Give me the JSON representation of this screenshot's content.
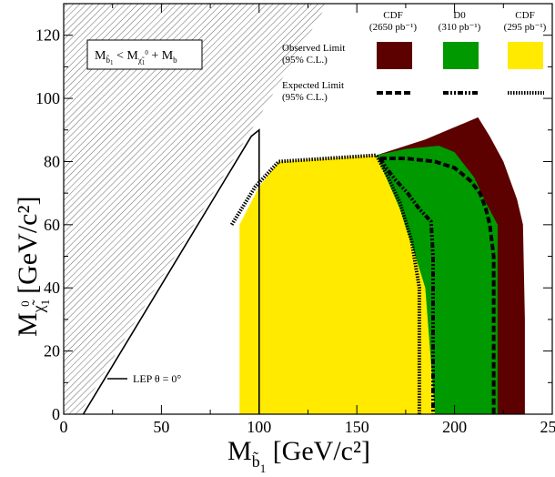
{
  "chart_data": {
    "type": "area",
    "xlim": [
      0,
      250
    ],
    "ylim": [
      0,
      130
    ],
    "x_ticks": [
      0,
      50,
      100,
      150,
      200,
      250
    ],
    "y_ticks": [
      0,
      20,
      40,
      60,
      80,
      100,
      120
    ],
    "x_tick_labels": [
      "0",
      "50",
      "100",
      "150",
      "200",
      "250"
    ],
    "y_tick_labels": [
      "0",
      "20",
      "40",
      "60",
      "80",
      "100",
      "120"
    ],
    "xlabel": {
      "main": "M",
      "sub": "b̃",
      "subsub": "1",
      "unit": "[GeV/c²]"
    },
    "ylabel": {
      "main": "M",
      "sub": "χ̃",
      "subsub": "1",
      "sup": "0",
      "unit": "[GeV/c²]"
    },
    "legend": {
      "headers": [
        {
          "name": "CDF",
          "lumi": "(2650 pb⁻¹)"
        },
        {
          "name": "D0",
          "lumi": "(310 pb⁻¹)"
        },
        {
          "name": "CDF",
          "lumi": "(295 pb⁻¹)"
        }
      ],
      "observed_label": [
        "Observed Limit",
        "(95% C.L.)"
      ],
      "expected_label": [
        "Expected Limit",
        "(95% C.L.)"
      ],
      "colors": [
        "#5c0000",
        "#009900",
        "#ffea00"
      ]
    },
    "kinematic_label": {
      "main": "M",
      "b_sub": "b̃",
      "b_subsub": "1",
      "lt": "<",
      "chi_sub": "χ̃",
      "chi_subsub": "1",
      "chi_sup": "0",
      "plus": "+",
      "b2_sub": "b"
    },
    "lep_label": "LEP θ = 0°",
    "series": [
      {
        "name": "CDF (2650 pb⁻¹) Observed Limit",
        "color": "#5c0000",
        "points": [
          [
            160,
            82
          ],
          [
            185,
            87
          ],
          [
            212,
            94
          ],
          [
            218,
            88
          ],
          [
            225,
            80
          ],
          [
            232,
            68
          ],
          [
            235,
            60
          ],
          [
            236,
            30
          ],
          [
            236,
            0
          ],
          [
            160,
            0
          ]
        ]
      },
      {
        "name": "D0 (310 pb⁻¹) Observed Limit",
        "color": "#009900",
        "points": [
          [
            160,
            82
          ],
          [
            175,
            84
          ],
          [
            192,
            85
          ],
          [
            200,
            83
          ],
          [
            210,
            75
          ],
          [
            216,
            67
          ],
          [
            222,
            60
          ],
          [
            222,
            0
          ],
          [
            160,
            0
          ]
        ]
      },
      {
        "name": "CDF (295 pb⁻¹) Observed Limit",
        "color": "#ffea00",
        "points": [
          [
            90,
            60
          ],
          [
            100,
            72
          ],
          [
            110,
            80
          ],
          [
            160,
            82
          ],
          [
            165,
            75
          ],
          [
            172,
            65
          ],
          [
            180,
            50
          ],
          [
            185,
            40
          ],
          [
            190,
            0
          ],
          [
            90,
            0
          ]
        ]
      },
      {
        "name": "CDF (2650 pb⁻¹) Expected Limit",
        "style": "dashed",
        "points": [
          [
            162,
            81
          ],
          [
            175,
            81
          ],
          [
            190,
            80
          ],
          [
            200,
            78
          ],
          [
            208,
            74
          ],
          [
            213,
            70
          ],
          [
            216,
            65
          ],
          [
            218,
            60
          ],
          [
            220,
            50
          ],
          [
            220,
            0
          ]
        ]
      },
      {
        "name": "D0 (310 pb⁻¹) Expected Limit",
        "style": "dashdot",
        "points": [
          [
            162,
            81
          ],
          [
            165,
            78
          ],
          [
            170,
            74
          ],
          [
            176,
            70
          ],
          [
            182,
            65
          ],
          [
            188,
            61
          ],
          [
            189,
            50
          ],
          [
            189,
            0
          ]
        ]
      },
      {
        "name": "CDF (295 pb⁻¹) Expected Limit",
        "style": "dotted",
        "points": [
          [
            86,
            60
          ],
          [
            92,
            66
          ],
          [
            98,
            72
          ],
          [
            110,
            80
          ],
          [
            160,
            82
          ],
          [
            166,
            75
          ],
          [
            172,
            67
          ],
          [
            178,
            55
          ],
          [
            182,
            40
          ],
          [
            182,
            0
          ]
        ]
      },
      {
        "name": "LEP θ = 0°",
        "style": "solid",
        "points": [
          [
            10,
            0
          ],
          [
            96,
            88
          ],
          [
            100,
            90
          ],
          [
            100,
            0
          ]
        ]
      }
    ]
  }
}
